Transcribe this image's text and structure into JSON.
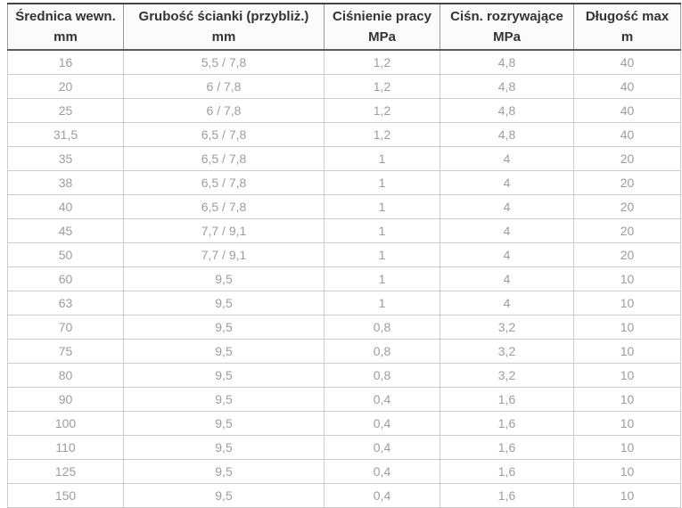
{
  "colors": {
    "header_text": "#333333",
    "body_text": "#9d9d9d",
    "border_light": "#cccccc",
    "border_dark_top": "#454545",
    "header_border": "#9a9a9a",
    "header_background": "#fbfbfb",
    "page_background": "#ffffff"
  },
  "chart_data": {
    "type": "table",
    "title": "",
    "columns": [
      {
        "label": "Średnica wewn.",
        "unit": "mm"
      },
      {
        "label": "Grubość ścianki (przybliż.)",
        "unit": "mm"
      },
      {
        "label": "Ciśnienie pracy",
        "unit": "MPa"
      },
      {
        "label": "Ciśn. rozrywające",
        "unit": "MPa"
      },
      {
        "label": "Długość max",
        "unit": "m"
      }
    ],
    "rows": [
      [
        "16",
        "5,5 / 7,8",
        "1,2",
        "4,8",
        "40"
      ],
      [
        "20",
        "6 / 7,8",
        "1,2",
        "4,8",
        "40"
      ],
      [
        "25",
        "6 / 7,8",
        "1,2",
        "4,8",
        "40"
      ],
      [
        "31,5",
        "6,5 / 7,8",
        "1,2",
        "4,8",
        "40"
      ],
      [
        "35",
        "6,5 / 7,8",
        "1",
        "4",
        "20"
      ],
      [
        "38",
        "6,5 / 7,8",
        "1",
        "4",
        "20"
      ],
      [
        "40",
        "6,5 / 7,8",
        "1",
        "4",
        "20"
      ],
      [
        "45",
        "7,7 / 9,1",
        "1",
        "4",
        "20"
      ],
      [
        "50",
        "7,7 / 9,1",
        "1",
        "4",
        "20"
      ],
      [
        "60",
        "9,5",
        "1",
        "4",
        "10"
      ],
      [
        "63",
        "9,5",
        "1",
        "4",
        "10"
      ],
      [
        "70",
        "9,5",
        "0,8",
        "3,2",
        "10"
      ],
      [
        "75",
        "9,5",
        "0,8",
        "3,2",
        "10"
      ],
      [
        "80",
        "9,5",
        "0,8",
        "3,2",
        "10"
      ],
      [
        "90",
        "9,5",
        "0,4",
        "1,6",
        "10"
      ],
      [
        "100",
        "9,5",
        "0,4",
        "1,6",
        "10"
      ],
      [
        "110",
        "9,5",
        "0,4",
        "1,6",
        "10"
      ],
      [
        "125",
        "9,5",
        "0,4",
        "1,6",
        "10"
      ],
      [
        "150",
        "9,5",
        "0,4",
        "1,6",
        "10"
      ]
    ]
  }
}
